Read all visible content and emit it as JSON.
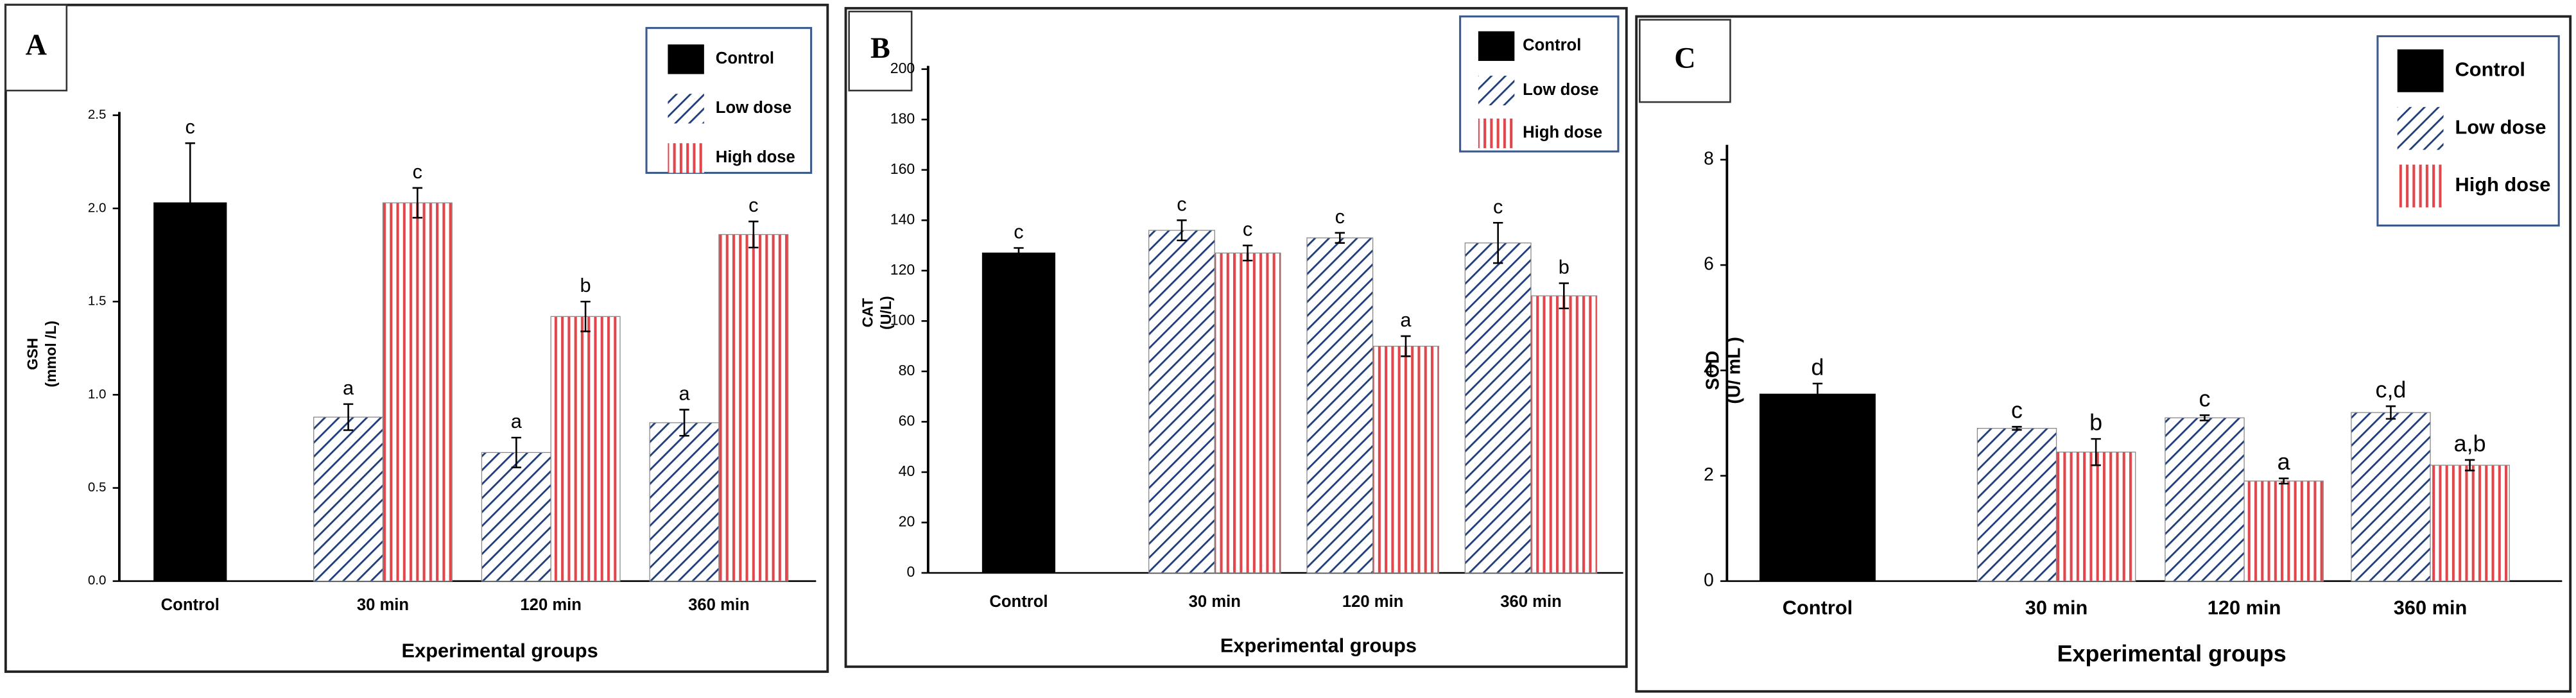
{
  "chart_data": [
    {
      "type": "bar",
      "panel": "A",
      "ylabel": [
        "GSH",
        "(mmol /L)"
      ],
      "xlabel": "Experimental groups",
      "categories": [
        "Control",
        "30 min",
        "120 min",
        "360 min"
      ],
      "ylim": [
        0,
        2.5
      ],
      "yticks": [
        {
          "value": 0,
          "label": "0.0"
        },
        0.5,
        {
          "value": 1,
          "label": "1.0"
        },
        1.5,
        {
          "value": 2,
          "label": "2.0"
        },
        2.5
      ],
      "series": [
        {
          "name": "Control",
          "color": "#000000",
          "values": [
            2.03,
            null,
            null,
            null
          ],
          "errors": [
            0.32,
            null,
            null,
            null
          ],
          "letters": [
            "c",
            null,
            null,
            null
          ]
        },
        {
          "name": "Low dose",
          "color": "#1f3d7a",
          "values": [
            null,
            0.88,
            0.69,
            0.85
          ],
          "errors": [
            null,
            0.07,
            0.08,
            0.07
          ],
          "letters": [
            null,
            "a",
            "a",
            "a"
          ]
        },
        {
          "name": "High dose",
          "color": "#e0474c",
          "values": [
            null,
            2.03,
            1.42,
            1.86
          ],
          "errors": [
            null,
            0.08,
            0.08,
            0.07
          ],
          "letters": [
            null,
            "c",
            "b",
            "c"
          ]
        }
      ]
    },
    {
      "type": "bar",
      "panel": "B",
      "ylabel": [
        "CAT",
        "(U/L)"
      ],
      "xlabel": "Experimental groups",
      "categories": [
        "Control",
        "30 min",
        "120 min",
        "360 min"
      ],
      "ylim": [
        0,
        200
      ],
      "yticks": [
        0,
        20,
        40,
        60,
        80,
        100,
        120,
        140,
        160,
        180,
        200
      ],
      "series": [
        {
          "name": "Control",
          "color": "#000000",
          "values": [
            127,
            null,
            null,
            null
          ],
          "errors": [
            2,
            null,
            null,
            null
          ],
          "letters": [
            "c",
            null,
            null,
            null
          ]
        },
        {
          "name": "Low dose",
          "color": "#1f3d7a",
          "values": [
            null,
            136,
            133,
            131
          ],
          "errors": [
            null,
            4,
            2,
            8
          ],
          "letters": [
            null,
            "c",
            "c",
            "c"
          ]
        },
        {
          "name": "High dose",
          "color": "#e0474c",
          "values": [
            null,
            127,
            90,
            110
          ],
          "errors": [
            null,
            3,
            4,
            5
          ],
          "letters": [
            null,
            "c",
            "a",
            "b"
          ]
        }
      ]
    },
    {
      "type": "bar",
      "panel": "C",
      "ylabel": [
        "SOD",
        "(U/ mL )"
      ],
      "xlabel": "Experimental groups",
      "categories": [
        "Control",
        "30 min",
        "120 min",
        "360 min"
      ],
      "ylim": [
        0,
        8
      ],
      "yticks": [
        0,
        2,
        4,
        6,
        8
      ],
      "series": [
        {
          "name": "Control",
          "color": "#000000",
          "values": [
            3.55,
            null,
            null,
            null
          ],
          "errors": [
            0.2,
            null,
            null,
            null
          ],
          "letters": [
            "d",
            null,
            null,
            null
          ]
        },
        {
          "name": "Low dose",
          "color": "#1f3d7a",
          "values": [
            null,
            2.9,
            3.1,
            3.2
          ],
          "errors": [
            null,
            0.03,
            0.05,
            0.12
          ],
          "letters": [
            null,
            "c",
            "c",
            "c,d"
          ]
        },
        {
          "name": "High dose",
          "color": "#e0474c",
          "values": [
            null,
            2.45,
            1.9,
            2.2
          ],
          "errors": [
            null,
            0.25,
            0.05,
            0.1
          ],
          "letters": [
            null,
            "b",
            "a",
            "a,b"
          ]
        }
      ]
    }
  ]
}
